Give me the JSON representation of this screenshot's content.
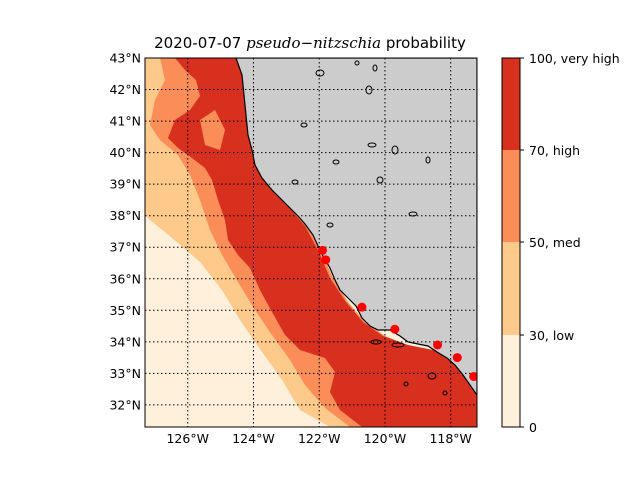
{
  "map": {
    "date": "2020-07-07",
    "species": "pseudo−nitzschia",
    "suffix": "probability",
    "lat_labels": [
      "43°N",
      "42°N",
      "41°N",
      "40°N",
      "39°N",
      "38°N",
      "37°N",
      "36°N",
      "35°N",
      "34°N",
      "33°N",
      "32°N"
    ],
    "lat_values": [
      43,
      42,
      41,
      40,
      39,
      38,
      37,
      36,
      35,
      34,
      33,
      32
    ],
    "lon_labels": [
      "126°W",
      "124°W",
      "122°W",
      "120°W",
      "118°W"
    ],
    "lon_values": [
      -126,
      -124,
      -122,
      -120,
      -118
    ],
    "extent": {
      "lon_min": -127.3,
      "lon_max": -117.2,
      "lat_min": 31.3,
      "lat_max": 43.0
    },
    "land_color": "#cccccc",
    "colorbar": {
      "levels": [
        {
          "label": "0",
          "color": "#fff0dc"
        },
        {
          "label": "30, low",
          "color": "#fdca8b"
        },
        {
          "label": "50, med",
          "color": "#fb8d59"
        },
        {
          "label": "70, high",
          "color": "#d7301f"
        }
      ],
      "top_label": "100, very high"
    },
    "stations": [
      {
        "lon": -121.9,
        "lat": 36.9
      },
      {
        "lon": -121.8,
        "lat": 36.6
      },
      {
        "lon": -120.7,
        "lat": 35.1
      },
      {
        "lon": -119.7,
        "lat": 34.4
      },
      {
        "lon": -118.4,
        "lat": 33.9
      },
      {
        "lon": -117.8,
        "lat": 33.5
      },
      {
        "lon": -117.3,
        "lat": 32.9
      }
    ]
  }
}
